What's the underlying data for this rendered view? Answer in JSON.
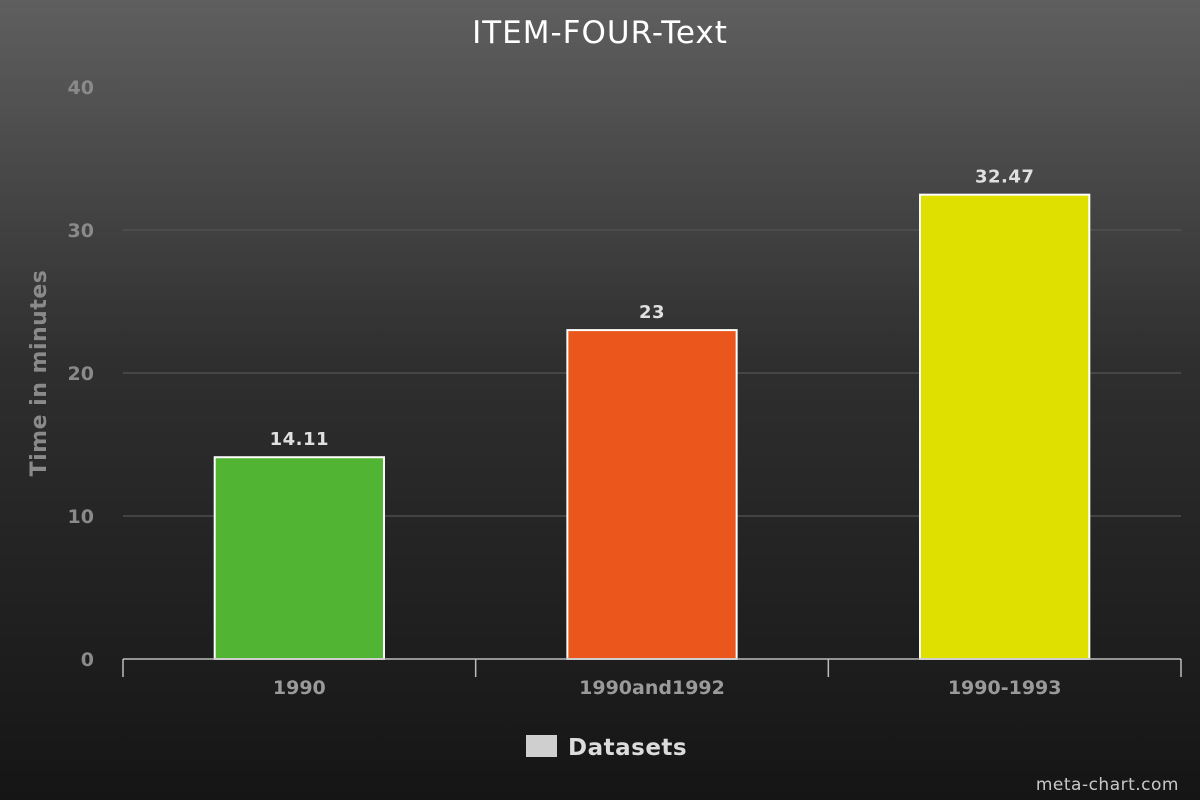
{
  "chart_data": {
    "type": "bar",
    "title": "ITEM-FOUR-Text",
    "xlabel": "",
    "ylabel": "Time in minutes",
    "categories": [
      "1990",
      "1990and1992",
      "1990-1993"
    ],
    "series": [
      {
        "name": "Datasets",
        "values": [
          14.11,
          23,
          32.47
        ],
        "data_labels": [
          "14.11",
          "23",
          "32.47"
        ],
        "colors": [
          "#52b433",
          "#eb561d",
          "#dfe000"
        ]
      }
    ],
    "ylim": [
      0,
      40
    ],
    "yticks": [
      "0",
      "10",
      "20",
      "30",
      "40"
    ],
    "grid": true,
    "legend_position": "bottom-center",
    "legend_swatch_color": "#cfcfcf"
  },
  "credit": "meta-chart.com"
}
